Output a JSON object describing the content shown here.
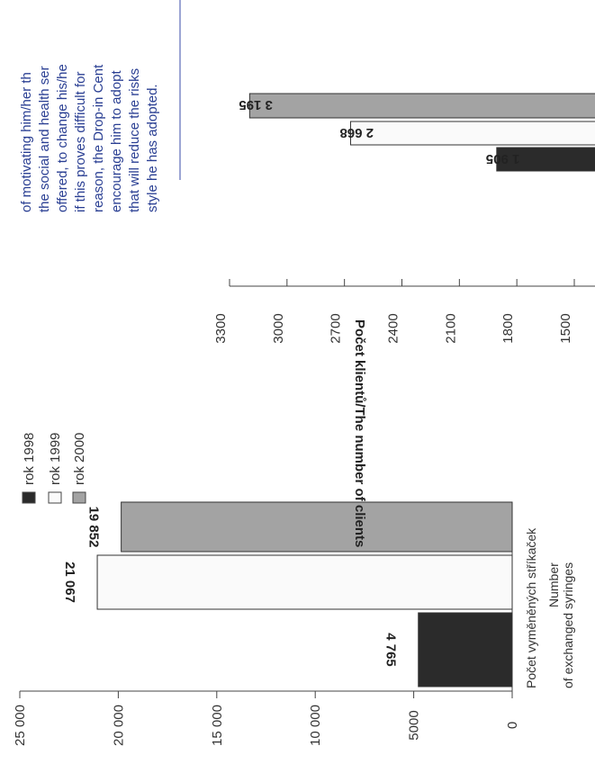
{
  "colors": {
    "rok_1998": "#2b2b2b",
    "rok_1999": "#fafafa",
    "rok_2000": "#a3a3a3",
    "text_blue": "#2a3f93",
    "rule_blue": "#5a6ab8"
  },
  "sidebar_text": {
    "lines": [
      "of motivating him/her th",
      "the social and health ser",
      "offered, to change his/he",
      "if this proves difficult for",
      "reason, the Drop-in Cent",
      "encourage him to adopt",
      "that will reduce the risks",
      "style he has adopted."
    ]
  },
  "chart_data": [
    {
      "type": "bar",
      "orientation": "vertical",
      "rotation": "image rotated 90° counter-clockwise",
      "categories": [
        "rok 1998",
        "rok 1999",
        "rok 2000"
      ],
      "values": [
        4765,
        21067,
        19852
      ],
      "value_labels": [
        "4 765",
        "21 067",
        "19 852"
      ],
      "ylim": [
        0,
        25000
      ],
      "yticks": [
        0,
        5000,
        10000,
        15000,
        20000,
        25000
      ],
      "ytick_labels": [
        "0",
        "5000",
        "10 000",
        "15 000",
        "20 000",
        "25 000"
      ],
      "xlabel_line1": "Počet vyměněných stříkaček",
      "xlabel_line2": "Number",
      "xlabel_line3": "of exchanged syringes",
      "legend": [
        "rok 1998",
        "rok 1999",
        "rok 2000"
      ],
      "legend_position": "right of chart (top in rotated view)",
      "grid": false
    },
    {
      "type": "bar",
      "orientation": "vertical",
      "rotation": "image rotated 90° counter-clockwise (labels upside down)",
      "categories": [
        "rok 1998",
        "rok 1999",
        "rok 2000"
      ],
      "values": [
        1905,
        2668,
        3195
      ],
      "value_labels": [
        "1 905",
        "2 668",
        "3 195"
      ],
      "ylim": [
        1500,
        3300
      ],
      "yticks": [
        1500,
        1800,
        2100,
        2400,
        2700,
        3000,
        3300
      ],
      "ytick_labels": [
        "1500",
        "1800",
        "2100",
        "2400",
        "2700",
        "3000",
        "3300"
      ],
      "ylabel": "Počet klientů/The number of clients",
      "grid": false
    }
  ]
}
